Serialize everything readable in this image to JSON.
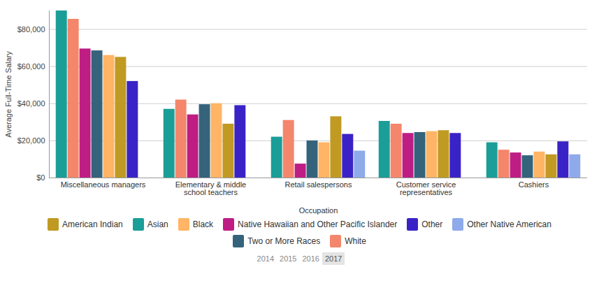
{
  "chart_data": {
    "type": "bar",
    "y_label": "Average Full-Time Salary",
    "x_label": "Occupation",
    "categories": [
      "Miscellaneous managers",
      "Elementary & middle school teachers",
      "Retail salespersons",
      "Customer service representatives",
      "Cashiers"
    ],
    "series": [
      {
        "name": "Asian",
        "color": "#1b9e98",
        "values": [
          90000,
          37000,
          22000,
          30500,
          19000
        ]
      },
      {
        "name": "White",
        "color": "#f4866c",
        "values": [
          85500,
          42000,
          31000,
          29000,
          15000
        ]
      },
      {
        "name": "Native Hawaiian and Other Pacific Islander",
        "color": "#be1d84",
        "values": [
          69500,
          34000,
          7500,
          24000,
          13500
        ]
      },
      {
        "name": "Two or More Races",
        "color": "#35637c",
        "values": [
          68500,
          39500,
          20000,
          24500,
          12000
        ]
      },
      {
        "name": "Black",
        "color": "#ffb565",
        "values": [
          66000,
          40000,
          19000,
          25000,
          14000
        ]
      },
      {
        "name": "American Indian",
        "color": "#c09a22",
        "values": [
          65000,
          29000,
          33000,
          25500,
          12500
        ]
      },
      {
        "name": "Other",
        "color": "#3a23c6",
        "values": [
          52000,
          39000,
          23500,
          24000,
          19500
        ]
      },
      {
        "name": "Other Native American",
        "color": "#8eaaeb",
        "values": [
          null,
          null,
          14500,
          null,
          12500
        ]
      }
    ],
    "ylim": [
      0,
      90000
    ],
    "yticks": [
      {
        "value": 0,
        "label": "$0"
      },
      {
        "value": 20000,
        "label": "$20,000"
      },
      {
        "value": 40000,
        "label": "$40,000"
      },
      {
        "value": 60000,
        "label": "$60,000"
      },
      {
        "value": 80000,
        "label": "$80,000"
      }
    ],
    "grid": true,
    "legend": "bottom",
    "years": [
      "2014",
      "2015",
      "2016",
      "2017"
    ],
    "selected_year": "2017"
  }
}
